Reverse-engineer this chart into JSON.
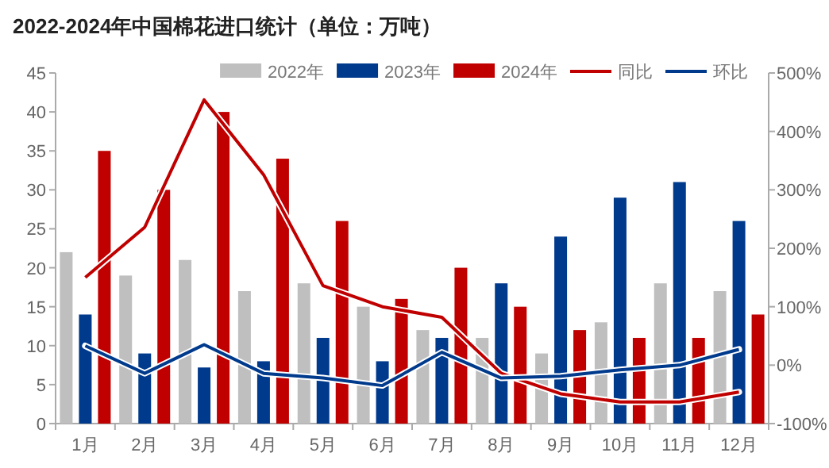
{
  "chart_data": {
    "type": "bar",
    "title": "2022-2024年中国棉花进口统计（单位：万吨）",
    "categories": [
      "1月",
      "2月",
      "3月",
      "4月",
      "5月",
      "6月",
      "7月",
      "8月",
      "9月",
      "10月",
      "11月",
      "12月"
    ],
    "series": [
      {
        "name": "2022年",
        "color": "#bfbfbf",
        "values": [
          22,
          19,
          21,
          17,
          18,
          15,
          12,
          11,
          9,
          13,
          18,
          17
        ]
      },
      {
        "name": "2023年",
        "color": "#003a8c",
        "values": [
          14,
          9,
          7.2,
          8,
          11,
          8,
          11,
          18,
          24,
          29,
          31,
          26
        ]
      },
      {
        "name": "2024年",
        "color": "#c00000",
        "values": [
          35,
          30,
          40,
          34,
          26,
          16,
          20,
          15,
          12,
          11,
          11,
          14
        ]
      },
      {
        "name": "同比",
        "type": "line",
        "axis": "y2",
        "color": "#c00000",
        "values": [
          150,
          236,
          454,
          326,
          136,
          100,
          82,
          -14,
          -49,
          -63,
          -63,
          -46
        ]
      },
      {
        "name": "环比",
        "type": "line",
        "axis": "y2",
        "color": "#003a8c",
        "values": [
          33,
          -14,
          35,
          -14,
          -22,
          -35,
          22,
          -22,
          -19,
          -8,
          0,
          27
        ]
      }
    ],
    "ylim": [
      0,
      45
    ],
    "yticks": [
      0,
      5,
      10,
      15,
      20,
      25,
      30,
      35,
      40,
      45
    ],
    "y2lim": [
      -100,
      500
    ],
    "y2ticks": [
      {
        "value": -100,
        "label": "-100%"
      },
      {
        "value": 0,
        "label": "0%"
      },
      {
        "value": 100,
        "label": "100%"
      },
      {
        "value": 200,
        "label": "200%"
      },
      {
        "value": 300,
        "label": "300%"
      },
      {
        "value": 400,
        "label": "400%"
      },
      {
        "value": 500,
        "label": "500%"
      }
    ],
    "legend": "top right",
    "marker": "none",
    "line_style": "solid"
  }
}
